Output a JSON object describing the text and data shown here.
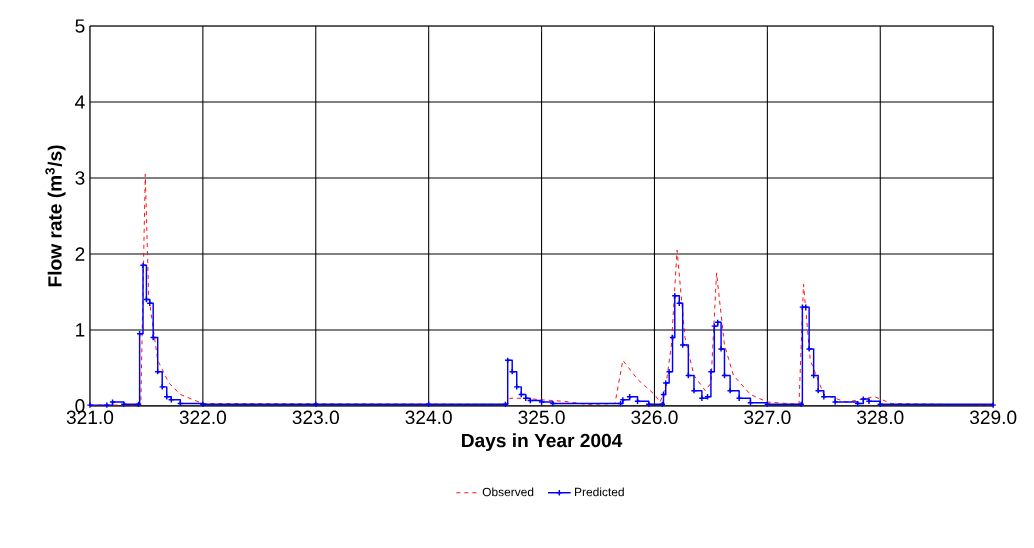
{
  "chart_data": {
    "type": "line",
    "xlabel": "Days in Year 2004",
    "ylabel": "Flow rate (m$^{3}$/s)",
    "xlim": [
      321,
      329
    ],
    "ylim": [
      0,
      5
    ],
    "xticks": [
      {
        "value": 321,
        "label": "321.0"
      },
      {
        "value": 322,
        "label": "322.0"
      },
      {
        "value": 323,
        "label": "323.0"
      },
      {
        "value": 324,
        "label": "324.0"
      },
      {
        "value": 325,
        "label": "325.0"
      },
      {
        "value": 326,
        "label": "326.0"
      },
      {
        "value": 327,
        "label": "327.0"
      },
      {
        "value": 328,
        "label": "328.0"
      },
      {
        "value": 329,
        "label": "329.0"
      }
    ],
    "yticks": [
      0,
      1,
      2,
      3,
      4,
      5
    ],
    "grid": true,
    "legend": "bottom",
    "series": [
      {
        "name": "Observed",
        "color": "#ff0000",
        "line_style": "dashed",
        "marker": "none",
        "x": [
          321.0,
          321.45,
          321.49,
          321.52,
          321.6,
          321.7,
          321.8,
          322.0,
          324.7,
          324.72,
          324.85,
          325.0,
          325.2,
          325.4,
          325.65,
          325.72,
          325.85,
          326.0,
          326.05,
          326.1,
          326.15,
          326.2,
          326.27,
          326.35,
          326.45,
          326.5,
          326.55,
          326.62,
          326.7,
          326.85,
          327.0,
          327.28,
          327.32,
          327.38,
          327.5,
          327.7,
          327.95,
          328.1,
          329.0
        ],
        "values": [
          0.01,
          0.01,
          3.05,
          1.45,
          0.6,
          0.3,
          0.15,
          0.03,
          0.02,
          0.1,
          0.1,
          0.08,
          0.06,
          0.02,
          0.03,
          0.6,
          0.35,
          0.15,
          0.05,
          0.25,
          0.8,
          2.05,
          0.9,
          0.4,
          0.2,
          0.3,
          1.75,
          0.8,
          0.4,
          0.15,
          0.05,
          0.02,
          1.6,
          0.6,
          0.15,
          0.05,
          0.12,
          0.03,
          0.01
        ]
      },
      {
        "name": "Predicted",
        "color": "#0000ff",
        "type": "step",
        "line_style": "solid",
        "marker": "cross",
        "x": [
          321.0,
          321.15,
          321.2,
          321.3,
          321.43,
          321.44,
          321.47,
          321.5,
          321.53,
          321.56,
          321.6,
          321.64,
          321.68,
          321.72,
          321.8,
          322.0,
          323.0,
          324.0,
          324.68,
          324.7,
          324.74,
          324.78,
          324.82,
          324.86,
          324.9,
          325.0,
          325.1,
          325.7,
          325.72,
          325.78,
          325.85,
          325.95,
          326.07,
          326.08,
          326.1,
          326.13,
          326.16,
          326.18,
          326.22,
          326.25,
          326.3,
          326.35,
          326.42,
          326.47,
          326.5,
          326.53,
          326.56,
          326.59,
          326.62,
          326.67,
          326.75,
          326.85,
          327.0,
          327.3,
          327.31,
          327.34,
          327.37,
          327.41,
          327.45,
          327.5,
          327.6,
          327.8,
          327.85,
          327.9,
          328.0,
          329.0
        ],
        "values": [
          0.01,
          0.01,
          0.05,
          0.02,
          0.02,
          0.95,
          1.85,
          1.4,
          1.35,
          0.9,
          0.45,
          0.25,
          0.12,
          0.08,
          0.03,
          0.02,
          0.02,
          0.02,
          0.02,
          0.6,
          0.45,
          0.25,
          0.15,
          0.1,
          0.07,
          0.05,
          0.03,
          0.03,
          0.08,
          0.12,
          0.06,
          0.02,
          0.02,
          0.15,
          0.3,
          0.45,
          0.9,
          1.45,
          1.35,
          0.8,
          0.4,
          0.2,
          0.1,
          0.12,
          0.45,
          1.05,
          1.1,
          0.75,
          0.4,
          0.2,
          0.1,
          0.04,
          0.02,
          0.02,
          1.3,
          1.3,
          0.75,
          0.4,
          0.2,
          0.12,
          0.05,
          0.03,
          0.09,
          0.06,
          0.02,
          0.01
        ]
      }
    ]
  }
}
